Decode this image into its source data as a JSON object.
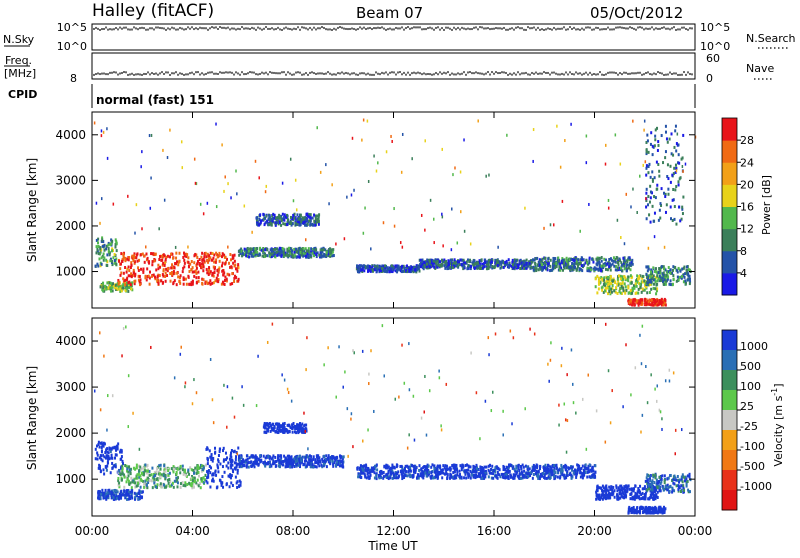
{
  "header": {
    "station": "Halley (fitACF)",
    "beam": "Beam 07",
    "date": "05/Oct/2012"
  },
  "top_panels": {
    "nsky_label": "N.Sky",
    "nsky_ticks": [
      "10^5",
      "10^0"
    ],
    "nsearch_label": "N.Search",
    "nsearch_ticks": [
      "10^5",
      "10^0"
    ],
    "freq_label": "Freq.",
    "freq_unit": "[MHz]",
    "freq_ticks": [
      "8"
    ],
    "nave_label": "Nave",
    "nave_ticks": [
      "60",
      "0"
    ],
    "cpid_label": "CPID",
    "cpid_value": "normal (fast) 151"
  },
  "colors": {
    "power": [
      "#1a1ae6",
      "#2453a8",
      "#3b7f5a",
      "#52b84c",
      "#e8d21a",
      "#f2a018",
      "#f06a14",
      "#e8141a"
    ],
    "velocity": [
      "#1a3ad6",
      "#2a6fb5",
      "#3c8f5c",
      "#5cc84a",
      "#c8c8c4",
      "#f2a018",
      "#f07814",
      "#e8321a",
      "#e01414"
    ]
  },
  "chart_data": [
    {
      "type": "heatmap",
      "quantity": "Power",
      "ylabel": "Slant Range [km]",
      "ylim": [
        200,
        4500
      ],
      "yticks": [
        "1000",
        "2000",
        "3000",
        "4000"
      ],
      "xlim_hours": [
        0,
        24
      ],
      "colorbar_label": "Power [dB]",
      "colorbar_ticks": [
        "4",
        "8",
        "12",
        "16",
        "20",
        "24",
        "28"
      ],
      "features": [
        {
          "t": [
            0.1,
            1.0
          ],
          "r": [
            1100,
            1750
          ],
          "v": 0.35
        },
        {
          "t": [
            0.3,
            1.6
          ],
          "r": [
            550,
            750
          ],
          "v": 0.45
        },
        {
          "t": [
            1.0,
            5.8
          ],
          "r": [
            700,
            1400
          ],
          "v": 0.92
        },
        {
          "t": [
            5.8,
            9.6
          ],
          "r": [
            1300,
            1500
          ],
          "v": 0.25
        },
        {
          "t": [
            6.5,
            9.0
          ],
          "r": [
            2000,
            2250
          ],
          "v": 0.2
        },
        {
          "t": [
            10.5,
            13.0
          ],
          "r": [
            980,
            1120
          ],
          "v": 0.15
        },
        {
          "t": [
            13.0,
            17.5
          ],
          "r": [
            1050,
            1250
          ],
          "v": 0.2
        },
        {
          "t": [
            17.5,
            21.5
          ],
          "r": [
            1000,
            1300
          ],
          "v": 0.25
        },
        {
          "t": [
            20.0,
            22.5
          ],
          "r": [
            500,
            900
          ],
          "v": 0.45
        },
        {
          "t": [
            21.3,
            22.8
          ],
          "r": [
            250,
            380
          ],
          "v": 0.95
        },
        {
          "t": [
            22.0,
            23.8
          ],
          "r": [
            700,
            1100
          ],
          "v": 0.3
        },
        {
          "t": [
            22.0,
            23.5
          ],
          "r": [
            2000,
            4200
          ],
          "v": 0.2
        }
      ]
    },
    {
      "type": "heatmap",
      "quantity": "Velocity",
      "ylabel": "Slant Range [km]",
      "ylim": [
        200,
        4500
      ],
      "yticks": [
        "1000",
        "2000",
        "3000",
        "4000"
      ],
      "xlim_hours": [
        0,
        24
      ],
      "xticks": [
        "00:00",
        "04:00",
        "08:00",
        "12:00",
        "16:00",
        "20:00",
        "00:00"
      ],
      "xlabel": "Time UT",
      "colorbar_label": "Velocity [m s",
      "colorbar_label_sup": "-1",
      "colorbar_label_end": "]",
      "colorbar_ticks": [
        "1000",
        "500",
        "100",
        "25",
        "-25",
        "-100",
        "-500",
        "-1000"
      ],
      "features": [
        {
          "t": [
            0.1,
            1.2
          ],
          "r": [
            1100,
            1800
          ],
          "v": -0.05
        },
        {
          "t": [
            0.2,
            2.0
          ],
          "r": [
            550,
            750
          ],
          "v": 0.0
        },
        {
          "t": [
            1.0,
            4.5
          ],
          "r": [
            800,
            1300
          ],
          "v": 0.35
        },
        {
          "t": [
            4.5,
            5.9
          ],
          "r": [
            800,
            1700
          ],
          "v": -0.4
        },
        {
          "t": [
            5.8,
            10.0
          ],
          "r": [
            1250,
            1500
          ],
          "v": 0.0
        },
        {
          "t": [
            6.8,
            8.5
          ],
          "r": [
            2000,
            2200
          ],
          "v": -0.4
        },
        {
          "t": [
            10.5,
            20.0
          ],
          "r": [
            1000,
            1300
          ],
          "v": 0.0
        },
        {
          "t": [
            20.0,
            22.5
          ],
          "r": [
            550,
            850
          ],
          "v": -0.5
        },
        {
          "t": [
            21.3,
            22.8
          ],
          "r": [
            250,
            380
          ],
          "v": -0.5
        },
        {
          "t": [
            22.0,
            23.8
          ],
          "r": [
            700,
            1100
          ],
          "v": 0.15
        }
      ]
    }
  ]
}
